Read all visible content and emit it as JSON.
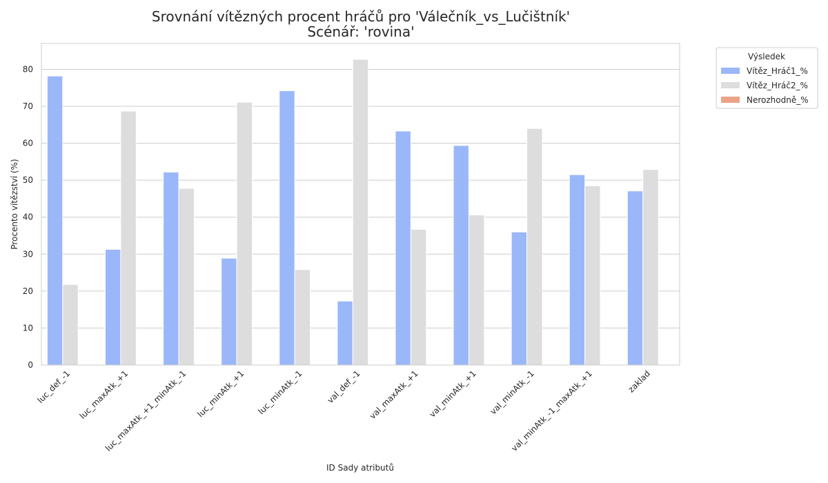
{
  "chart_data": {
    "type": "bar",
    "title": "Srovnání vítězných procent hráčů pro 'Válečník_vs_Lučištník'",
    "subtitle": "Scénář: 'rovina'",
    "xlabel": "ID Sady atributů",
    "ylabel": "Procento vítězství (%)",
    "ylim": [
      0,
      87
    ],
    "yticks": [
      0,
      10,
      20,
      30,
      40,
      50,
      60,
      70,
      80
    ],
    "grid": true,
    "legend_placement": "outside-top-right",
    "categories": [
      "luc_def_-1",
      "luc_maxAtk_+1",
      "luc_maxAtk_+1_minAtk_-1",
      "luc_minAtk_+1",
      "luc_minAtk_-1",
      "val_def_-1",
      "val_maxAtk_+1",
      "val_minAtk_+1",
      "val_minAtk_-1",
      "val_minAtk_-1_maxAtk_+1",
      "zaklad"
    ],
    "legend_title": "Výsledek",
    "series": [
      {
        "name": "Vítěz_Hráč1_%",
        "color": "#9ab7fa",
        "values": [
          78.2,
          31.3,
          52.2,
          28.9,
          74.2,
          17.3,
          63.3,
          59.4,
          36.0,
          51.5,
          47.1
        ]
      },
      {
        "name": "Vítěz_Hráč2_%",
        "color": "#dddddd",
        "values": [
          21.8,
          68.7,
          47.8,
          71.1,
          25.8,
          82.7,
          36.7,
          40.6,
          64.0,
          48.5,
          52.9
        ]
      },
      {
        "name": "Nerozhodně_%",
        "color": "#eca387",
        "values": [
          0,
          0,
          0,
          0,
          0,
          0,
          0,
          0,
          0,
          0,
          0
        ]
      }
    ]
  }
}
